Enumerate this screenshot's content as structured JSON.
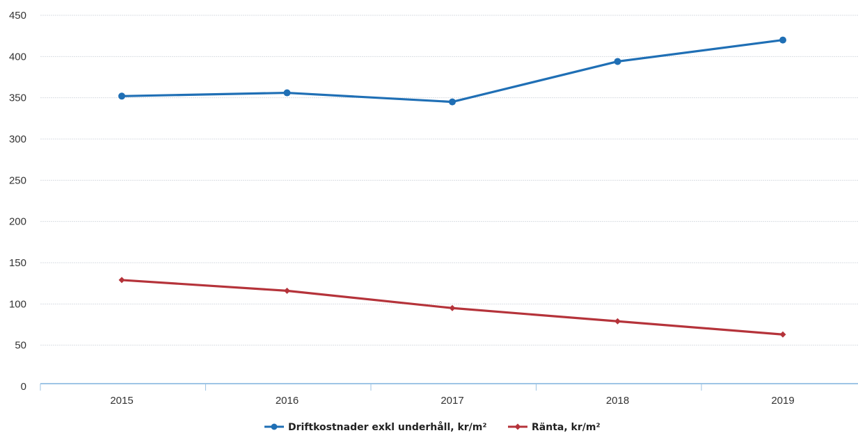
{
  "chart_data": {
    "type": "line",
    "title": "",
    "xlabel": "",
    "ylabel": "",
    "categories": [
      "2015",
      "2016",
      "2017",
      "2018",
      "2019"
    ],
    "ylim": [
      0,
      450
    ],
    "yticks": [
      0,
      50,
      100,
      150,
      200,
      250,
      300,
      350,
      400,
      450
    ],
    "grid": true,
    "legend_position": "bottom",
    "series": [
      {
        "name": "Driftkostnader exkl underhåll, kr/m²",
        "values": [
          352,
          356,
          345,
          394,
          420
        ],
        "color": "#1f6fb5",
        "marker": "circle"
      },
      {
        "name": "Ränta, kr/m²",
        "values": [
          129,
          116,
          95,
          79,
          63
        ],
        "color": "#b5333a",
        "marker": "diamond"
      }
    ]
  }
}
